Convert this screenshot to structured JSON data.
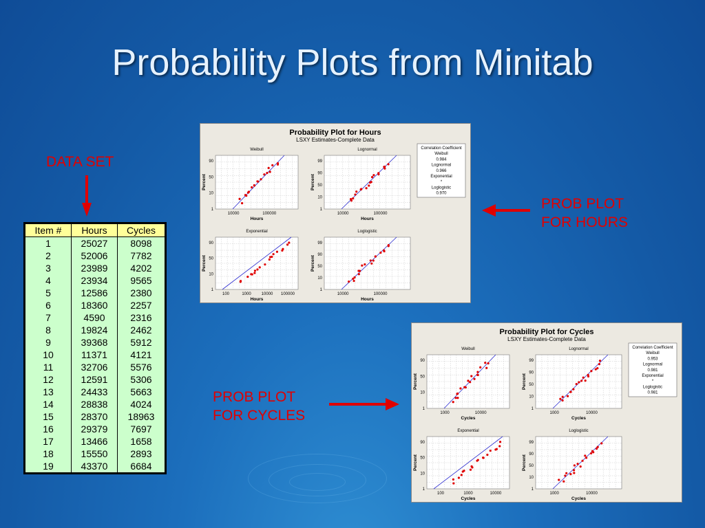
{
  "slide": {
    "title": "Probability Plots from Minitab",
    "data_set_label": "DATA SET",
    "hours_label_1": "PROB PLOT",
    "hours_label_2": "FOR HOURS",
    "cycles_label_1": "PROB PLOT",
    "cycles_label_2": "FOR CYCLES",
    "arrow_color": "#e00000"
  },
  "table": {
    "headers": [
      "Item #",
      "Hours",
      "Cycles"
    ],
    "rows": [
      [
        "1",
        "25027",
        "8098"
      ],
      [
        "2",
        "52006",
        "7782"
      ],
      [
        "3",
        "23989",
        "4202"
      ],
      [
        "4",
        "23934",
        "9565"
      ],
      [
        "5",
        "12586",
        "2380"
      ],
      [
        "6",
        "18360",
        "2257"
      ],
      [
        "7",
        "4590",
        "2316"
      ],
      [
        "8",
        "19824",
        "2462"
      ],
      [
        "9",
        "39368",
        "5912"
      ],
      [
        "10",
        "11371",
        "4121"
      ],
      [
        "11",
        "32706",
        "5576"
      ],
      [
        "12",
        "12591",
        "5306"
      ],
      [
        "13",
        "24433",
        "5663"
      ],
      [
        "14",
        "28838",
        "4024"
      ],
      [
        "15",
        "28370",
        "18963"
      ],
      [
        "16",
        "29379",
        "7697"
      ],
      [
        "17",
        "13466",
        "1658"
      ],
      [
        "18",
        "15550",
        "2893"
      ],
      [
        "19",
        "43370",
        "6684"
      ]
    ]
  },
  "hours_plot": {
    "title": "Probability Plot for Hours",
    "subtitle": "LSXY Estimates-Complete Data",
    "xlabel": "Hours",
    "ylabel": "Percent",
    "legend": [
      "Correlation Coefficient",
      "Weibull",
      "0.984",
      "Lognormal",
      "0.966",
      "Exponential",
      "*",
      "Loglogistic",
      "0.970"
    ],
    "subplots": [
      {
        "name": "Weibull",
        "xticks": [
          "10000",
          "100000"
        ],
        "yticks": [
          "90",
          "50",
          "10",
          "1"
        ]
      },
      {
        "name": "Lognormal",
        "xticks": [
          "10000",
          "100000"
        ],
        "yticks": [
          "99",
          "90",
          "50",
          "10",
          "1"
        ]
      },
      {
        "name": "Exponential",
        "xticks": [
          "100",
          "1000",
          "10000",
          "100000"
        ],
        "yticks": [
          "90",
          "50",
          "10",
          "1"
        ]
      },
      {
        "name": "Loglogistic",
        "xticks": [
          "10000",
          "100000"
        ],
        "yticks": [
          "99",
          "90",
          "50",
          "10",
          "1"
        ]
      }
    ]
  },
  "cycles_plot": {
    "title": "Probability Plot for Cycles",
    "subtitle": "LSXY Estimates-Complete Data",
    "xlabel": "Cycles",
    "ylabel": "Percent",
    "legend": [
      "Correlation Coefficient",
      "Weibull",
      "0.953",
      "Lognormal",
      "0.981",
      "Exponential",
      "*",
      "Loglogistic",
      "0.981"
    ],
    "subplots": [
      {
        "name": "Weibull",
        "xticks": [
          "1000",
          "10000"
        ],
        "yticks": [
          "90",
          "50",
          "10",
          "1"
        ]
      },
      {
        "name": "Lognormal",
        "xticks": [
          "1000",
          "10000"
        ],
        "yticks": [
          "99",
          "90",
          "50",
          "10",
          "1"
        ]
      },
      {
        "name": "Exponential",
        "xticks": [
          "100",
          "1000",
          "10000"
        ],
        "yticks": [
          "90",
          "50",
          "10",
          "1"
        ]
      },
      {
        "name": "Loglogistic",
        "xticks": [
          "1000",
          "10000"
        ],
        "yticks": [
          "99",
          "90",
          "50",
          "10",
          "1"
        ]
      }
    ]
  }
}
